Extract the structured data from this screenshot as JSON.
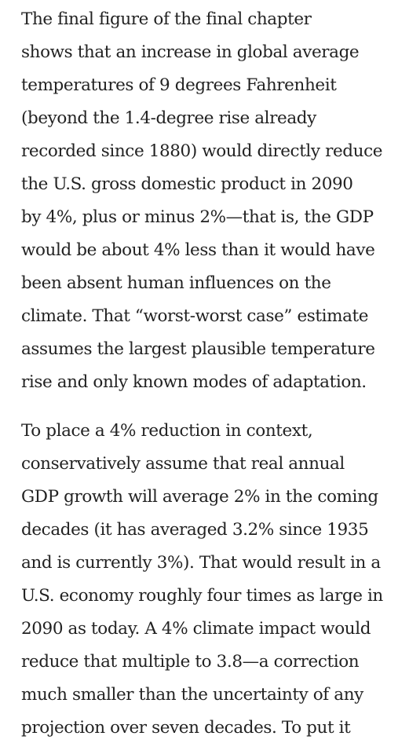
{
  "article": {
    "paragraphs": [
      {
        "lines": [
          "The final figure of the final chapter",
          "shows that an increase in global average",
          "temperatures of 9 degrees Fahrenheit",
          "(beyond the 1.4-degree rise already",
          "recorded since 1880) would directly reduce",
          "the U.S. gross domestic product in 2090",
          "by 4%, plus or minus 2%—that is, the GDP",
          "would be about 4% less than it would have",
          "been absent human influences on the",
          "climate. That “worst-worst case” estimate",
          "assumes the largest plausible temperature",
          "rise and only known modes of adaptation."
        ]
      },
      {
        "lines": [
          "To place a 4% reduction in context,",
          "conservatively assume that real annual",
          "GDP growth will average 2% in the coming",
          "decades (it has averaged 3.2% since 1935",
          "and is currently 3%). That would result in a",
          "U.S. economy roughly four times as large in",
          "2090 as today. A 4% climate impact would",
          "reduce that multiple to 3.8—a correction",
          "much smaller than the uncertainty of any",
          "projection over seven decades. To put it"
        ]
      }
    ]
  }
}
